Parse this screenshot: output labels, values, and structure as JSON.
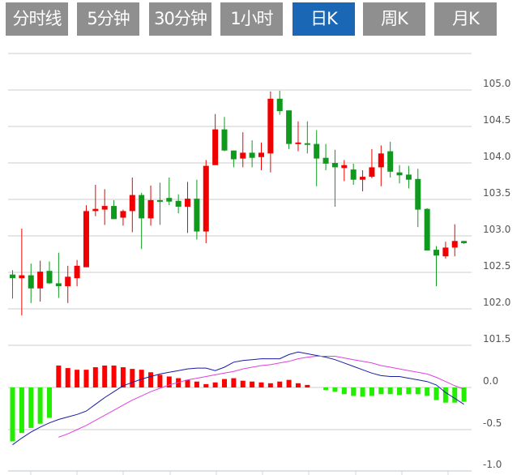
{
  "tabs": [
    {
      "label": "分时线",
      "active": false
    },
    {
      "label": "5分钟",
      "active": false
    },
    {
      "label": "30分钟",
      "active": false
    },
    {
      "label": "1小时",
      "active": false
    },
    {
      "label": "日K",
      "active": true
    },
    {
      "label": "周K",
      "active": false
    },
    {
      "label": "月K",
      "active": false
    }
  ],
  "colors": {
    "tab_bg": "#8f8f8f",
    "tab_active_bg": "#1a67b5",
    "up": "#f00000",
    "down": "#0f9a1e",
    "macd_up": "#ff0000",
    "macd_down": "#22ee00",
    "dif": "#1a1aa8",
    "dea": "#e040e0",
    "grid": "#dddddd"
  },
  "chart_data": [
    {
      "type": "candlestick",
      "ylim": [
        101.5,
        105.5
      ],
      "yticks": [
        "105.0",
        "104.5",
        "104.0",
        "103.5",
        "103.0",
        "102.5",
        "102.0",
        "101.5"
      ],
      "grid": true,
      "candles": [
        [
          102.47,
          102.42,
          102.53,
          102.14
        ],
        [
          102.42,
          102.46,
          103.1,
          101.91
        ],
        [
          102.46,
          102.28,
          102.62,
          102.08
        ],
        [
          102.28,
          102.51,
          102.66,
          102.1
        ],
        [
          102.52,
          102.35,
          102.65,
          102.34
        ],
        [
          102.35,
          102.31,
          102.77,
          102.15
        ],
        [
          102.31,
          102.44,
          102.59,
          102.08
        ],
        [
          102.42,
          102.59,
          102.67,
          102.31
        ],
        [
          102.57,
          103.34,
          103.42,
          102.57
        ],
        [
          103.34,
          103.37,
          103.7,
          103.27
        ],
        [
          103.36,
          103.41,
          103.64,
          103.15
        ],
        [
          103.41,
          103.23,
          103.49,
          103.23
        ],
        [
          103.25,
          103.34,
          103.36,
          103.14
        ],
        [
          103.34,
          103.56,
          103.8,
          103.05
        ],
        [
          103.56,
          103.24,
          103.59,
          102.82
        ],
        [
          103.24,
          103.49,
          103.69,
          103.14
        ],
        [
          103.49,
          103.47,
          103.73,
          103.15
        ],
        [
          103.52,
          103.47,
          103.8,
          103.42
        ],
        [
          103.48,
          103.4,
          103.57,
          103.31
        ],
        [
          103.4,
          103.51,
          103.74,
          103.04
        ],
        [
          103.51,
          103.06,
          103.77,
          102.95
        ],
        [
          103.06,
          103.96,
          104.04,
          102.9
        ],
        [
          103.97,
          104.46,
          104.67,
          103.97
        ],
        [
          104.46,
          104.17,
          104.63,
          104.16
        ],
        [
          104.17,
          104.05,
          104.17,
          103.94
        ],
        [
          104.06,
          104.14,
          104.42,
          103.94
        ],
        [
          104.14,
          104.07,
          104.31,
          103.94
        ],
        [
          104.08,
          104.14,
          104.28,
          103.9
        ],
        [
          104.13,
          104.88,
          104.98,
          103.87
        ],
        [
          104.88,
          104.71,
          104.99,
          104.66
        ],
        [
          104.72,
          104.26,
          104.72,
          104.19
        ],
        [
          104.26,
          104.28,
          104.57,
          104.16
        ],
        [
          104.27,
          104.25,
          104.57,
          104.13
        ],
        [
          104.26,
          104.06,
          104.45,
          103.68
        ],
        [
          104.07,
          103.99,
          104.26,
          103.9
        ],
        [
          104.0,
          103.94,
          104.18,
          103.4
        ],
        [
          103.93,
          103.97,
          104.04,
          103.75
        ],
        [
          103.91,
          103.77,
          103.99,
          103.7
        ],
        [
          103.77,
          103.81,
          103.9,
          103.61
        ],
        [
          103.81,
          103.94,
          104.19,
          103.79
        ],
        [
          103.94,
          104.13,
          104.24,
          103.68
        ],
        [
          104.16,
          103.88,
          104.29,
          103.8
        ],
        [
          103.87,
          103.83,
          103.97,
          103.72
        ],
        [
          103.84,
          103.77,
          103.96,
          103.65
        ],
        [
          103.78,
          103.36,
          103.92,
          103.12
        ],
        [
          103.37,
          102.8,
          103.38,
          102.8
        ],
        [
          102.81,
          102.73,
          102.86,
          102.31
        ],
        [
          102.72,
          102.84,
          102.92,
          102.69
        ],
        [
          102.84,
          102.93,
          103.16,
          102.72
        ],
        [
          102.93,
          102.9,
          102.93,
          102.89
        ]
      ]
    },
    {
      "type": "bar+line",
      "ylim": [
        -1.0,
        0.5
      ],
      "yticks": [
        "0.0",
        "-0.5",
        "-1.0"
      ],
      "grid": true,
      "histogram": [
        -0.64,
        -0.54,
        -0.48,
        -0.43,
        -0.36,
        0.26,
        0.23,
        0.21,
        0.21,
        0.24,
        0.26,
        0.26,
        0.24,
        0.22,
        0.21,
        0.18,
        0.15,
        0.13,
        0.11,
        0.09,
        0.07,
        0.04,
        0.06,
        0.1,
        0.11,
        0.08,
        0.07,
        0.06,
        0.05,
        0.07,
        0.09,
        0.05,
        0.03,
        0.0,
        -0.03,
        -0.05,
        -0.08,
        -0.1,
        -0.11,
        -0.1,
        -0.08,
        -0.08,
        -0.09,
        -0.08,
        -0.08,
        -0.1,
        -0.15,
        -0.18,
        -0.18,
        -0.17
      ],
      "dif": [
        -0.68,
        -0.6,
        -0.53,
        -0.47,
        -0.42,
        -0.38,
        -0.35,
        -0.32,
        -0.28,
        -0.2,
        -0.12,
        -0.05,
        0.02,
        0.06,
        0.1,
        0.13,
        0.16,
        0.18,
        0.2,
        0.22,
        0.23,
        0.23,
        0.2,
        0.24,
        0.3,
        0.32,
        0.33,
        0.34,
        0.34,
        0.34,
        0.39,
        0.42,
        0.4,
        0.38,
        0.36,
        0.33,
        0.29,
        0.25,
        0.21,
        0.17,
        0.14,
        0.13,
        0.13,
        0.11,
        0.09,
        0.07,
        0.03,
        -0.06,
        -0.13,
        -0.2
      ],
      "dea": [
        null,
        null,
        null,
        null,
        null,
        -0.59,
        -0.55,
        -0.5,
        -0.45,
        -0.39,
        -0.33,
        -0.27,
        -0.21,
        -0.15,
        -0.1,
        -0.05,
        -0.01,
        0.03,
        0.06,
        0.09,
        0.11,
        0.13,
        0.15,
        0.17,
        0.19,
        0.22,
        0.24,
        0.26,
        0.27,
        0.29,
        0.31,
        0.34,
        0.36,
        0.37,
        0.37,
        0.37,
        0.35,
        0.33,
        0.31,
        0.29,
        0.26,
        0.24,
        0.22,
        0.2,
        0.18,
        0.16,
        0.12,
        0.07,
        0.02,
        -0.02
      ]
    }
  ]
}
